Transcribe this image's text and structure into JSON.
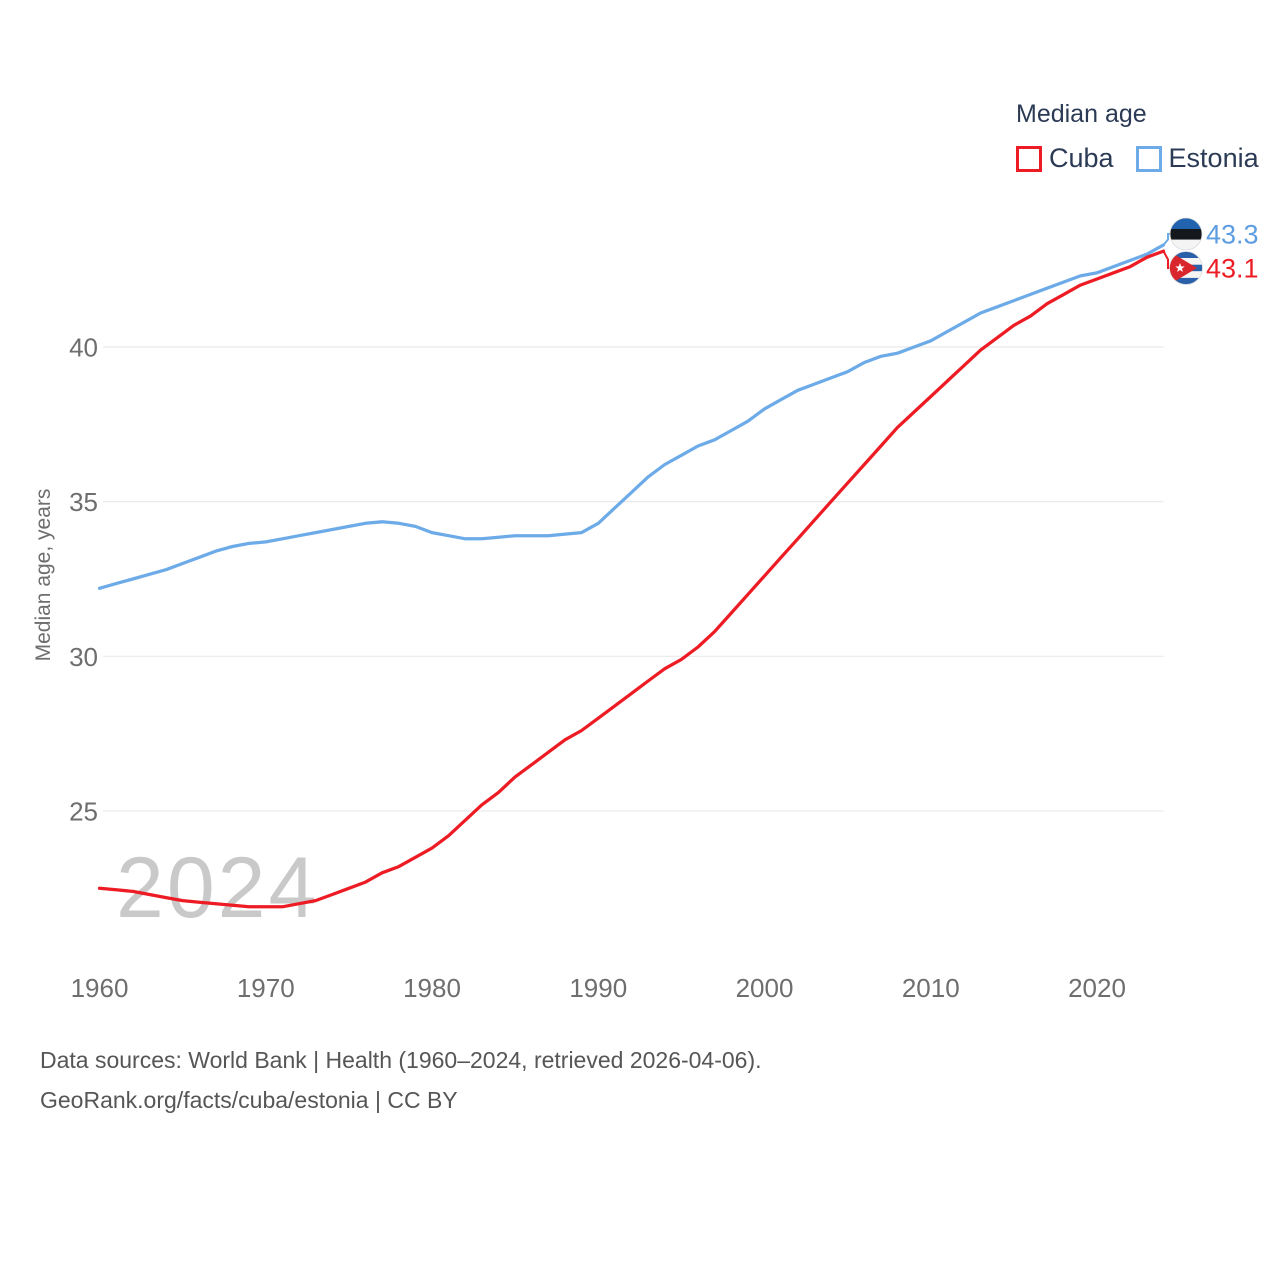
{
  "page": {
    "background": "#ffffff"
  },
  "legend": {
    "title": "Median age",
    "items": [
      {
        "label": "Cuba",
        "color": "#ed1c24"
      },
      {
        "label": "Estonia",
        "color": "#6cabe8"
      }
    ]
  },
  "watermark": "2024",
  "y_axis_title": "Median age, years",
  "footer": {
    "line1": "Data sources: World Bank | Health (1960–2024, retrieved 2026-04-06).",
    "line2": "GeoRank.org/facts/cuba/estonia | CC BY"
  },
  "chart_data": {
    "type": "line",
    "title": "Median age",
    "xlabel": "",
    "ylabel": "Median age, years",
    "x_start": 1960,
    "x_end": 2024,
    "xticks": [
      1960,
      1970,
      1980,
      1990,
      2000,
      2010,
      2020
    ],
    "yticks": [
      25,
      30,
      35,
      40
    ],
    "ylim": [
      20.5,
      43.8
    ],
    "grid": true,
    "legend_position": "top-right",
    "colors": {
      "cuba_red": "#ed1c24",
      "estonia_blue": "#6cabe8",
      "estonia_value_text": "#5d9de2",
      "gridline": "#e9e9e9",
      "tick_text": "#6e6e6e",
      "watermark_gray": "#c9c9c9",
      "legend_text": "#2b3a55"
    },
    "series": [
      {
        "name": "Estonia",
        "color": "#6cabe8",
        "values": [
          32.2,
          32.35,
          32.5,
          32.65,
          32.8,
          33.0,
          33.2,
          33.4,
          33.55,
          33.65,
          33.7,
          33.8,
          33.9,
          34.0,
          34.1,
          34.2,
          34.3,
          34.35,
          34.3,
          34.2,
          34.0,
          33.9,
          33.8,
          33.8,
          33.85,
          33.9,
          33.9,
          33.9,
          33.95,
          34.0,
          34.3,
          34.8,
          35.3,
          35.8,
          36.2,
          36.5,
          36.8,
          37.0,
          37.3,
          37.6,
          38.0,
          38.3,
          38.6,
          38.8,
          39.0,
          39.2,
          39.5,
          39.7,
          39.8,
          40.0,
          40.2,
          40.5,
          40.8,
          41.1,
          41.3,
          41.5,
          41.7,
          41.9,
          42.1,
          42.3,
          42.4,
          42.6,
          42.8,
          43.0,
          43.3
        ]
      },
      {
        "name": "Cuba",
        "color": "#ed1c24",
        "values": [
          22.5,
          22.45,
          22.4,
          22.3,
          22.2,
          22.1,
          22.05,
          22.0,
          21.95,
          21.9,
          21.9,
          21.9,
          22.0,
          22.1,
          22.3,
          22.5,
          22.7,
          23.0,
          23.2,
          23.5,
          23.8,
          24.2,
          24.7,
          25.2,
          25.6,
          26.1,
          26.5,
          26.9,
          27.3,
          27.6,
          28.0,
          28.4,
          28.8,
          29.2,
          29.6,
          29.9,
          30.3,
          30.8,
          31.4,
          32.0,
          32.6,
          33.2,
          33.8,
          34.4,
          35.0,
          35.6,
          36.2,
          36.8,
          37.4,
          37.9,
          38.4,
          38.9,
          39.4,
          39.9,
          40.3,
          40.7,
          41.0,
          41.4,
          41.7,
          42.0,
          42.2,
          42.4,
          42.6,
          42.9,
          43.1
        ]
      }
    ],
    "end_labels": [
      {
        "series": "Estonia",
        "value": "43.3",
        "text_color": "#5d9de2",
        "flag": "estonia-flag-icon"
      },
      {
        "series": "Cuba",
        "value": "43.1",
        "text_color": "#ed1c24",
        "flag": "cuba-flag-icon"
      }
    ]
  }
}
